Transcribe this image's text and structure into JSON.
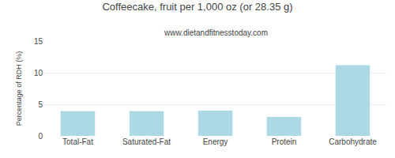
{
  "chart_data": {
    "type": "bar",
    "title": "Coffeecake, fruit per 1,000 oz (or 28.35 g)",
    "subtitle": "www.dietandfitnesstoday.com",
    "ylabel": "Percentage of RDH (%)",
    "categories": [
      "Total-Fat",
      "Saturated-Fat",
      "Energy",
      "Protein",
      "Carbohydrate"
    ],
    "values": [
      3.9,
      3.9,
      4.0,
      3.0,
      11.2
    ],
    "color": "#add8e6",
    "ylim": [
      0,
      15
    ],
    "yticks": [
      0,
      5,
      10,
      15
    ],
    "grid": true
  }
}
